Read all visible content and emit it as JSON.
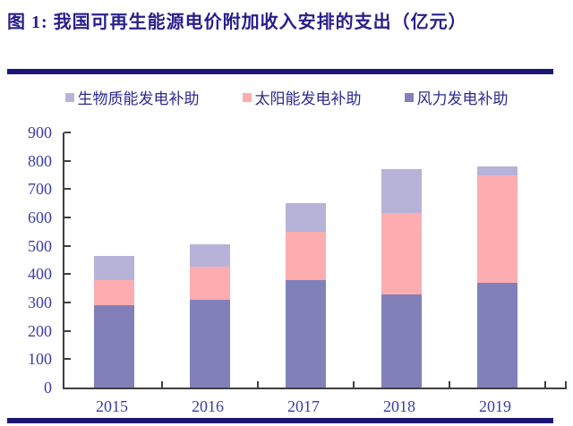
{
  "title": "图 1:  我国可再生能源电价附加收入安排的支出（亿元）",
  "colors": {
    "title": "#281f8c",
    "rule": "#1e1674",
    "axis_line": "#3f3f3f",
    "axis_label": "#3c3ca8",
    "legend_text": "#2c2a8f",
    "wind": "#8280b9",
    "solar": "#fdacb0",
    "biomass": "#b6b2d8"
  },
  "legend": [
    {
      "label": "生物质能发电补助",
      "series_key": "biomass"
    },
    {
      "label": "太阳能发电补助",
      "series_key": "solar"
    },
    {
      "label": "风力发电补助",
      "series_key": "wind"
    }
  ],
  "chart_data": {
    "type": "bar",
    "stacked": true,
    "title": "我国可再生能源电价附加收入安排的支出（亿元）",
    "categories": [
      "2015",
      "2016",
      "2017",
      "2018",
      "2019"
    ],
    "series": [
      {
        "name": "风力发电补助",
        "key": "wind",
        "values": [
          290,
          310,
          380,
          330,
          370
        ]
      },
      {
        "name": "太阳能发电补助",
        "key": "solar",
        "values": [
          90,
          115,
          170,
          285,
          380
        ]
      },
      {
        "name": "生物质能发电补助",
        "key": "biomass",
        "values": [
          85,
          80,
          100,
          155,
          30
        ]
      }
    ],
    "totals": [
      465,
      505,
      650,
      770,
      780
    ],
    "xlabel": "",
    "ylabel": "",
    "ylim": [
      0,
      900
    ],
    "ytick_step": 100,
    "grid": false,
    "legend_position": "top"
  }
}
